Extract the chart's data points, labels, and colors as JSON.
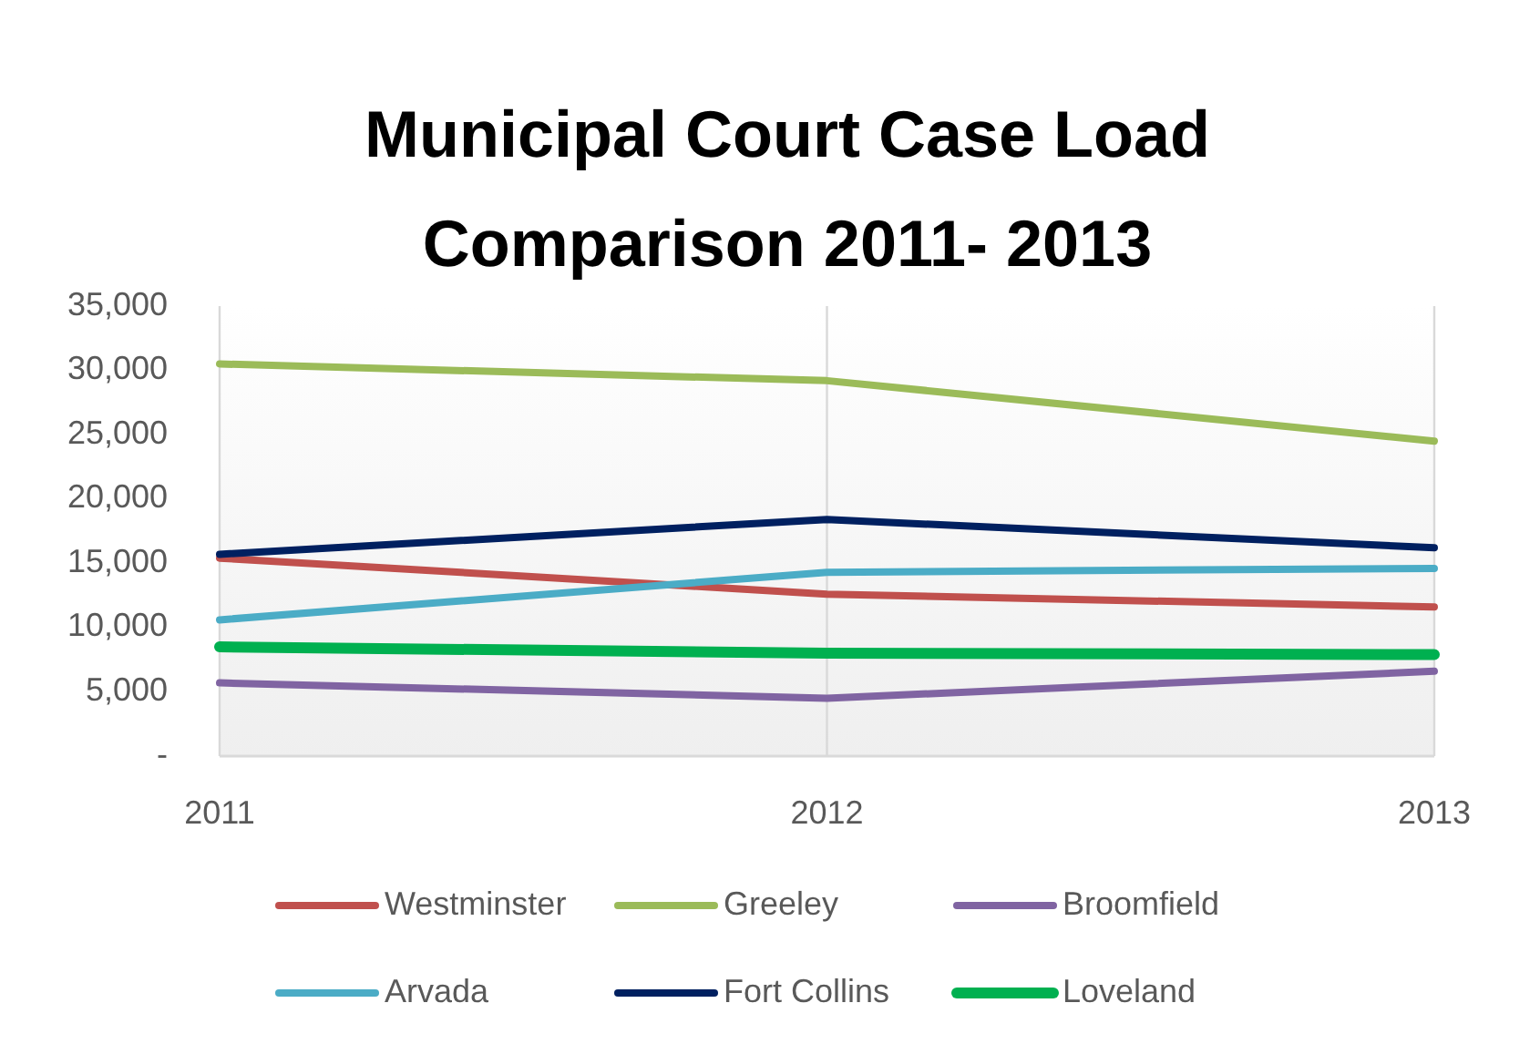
{
  "chart_data": {
    "type": "line",
    "title": "Municipal Court Case Load Comparison 2011- 2013",
    "categories": [
      "2011",
      "2012",
      "2013"
    ],
    "series": [
      {
        "name": "Westminster",
        "color": "#c0504d",
        "values": [
          15400,
          12600,
          11600
        ]
      },
      {
        "name": "Greeley",
        "color": "#9bbb59",
        "values": [
          30500,
          29200,
          24500
        ]
      },
      {
        "name": "Broomfield",
        "color": "#8064a2",
        "values": [
          5700,
          4500,
          6600
        ]
      },
      {
        "name": "Arvada",
        "color": "#4bacc6",
        "values": [
          10600,
          14300,
          14600
        ]
      },
      {
        "name": "Fort Collins",
        "color": "#002060",
        "values": [
          15700,
          18400,
          16200
        ]
      },
      {
        "name": "Loveland",
        "color": "#00b050",
        "values": [
          8500,
          8000,
          7900
        ]
      }
    ],
    "ylim": [
      0,
      35000
    ],
    "yticks": [
      {
        "value": 0,
        "label": "-"
      },
      {
        "value": 5000,
        "label": "5,000"
      },
      {
        "value": 10000,
        "label": "10,000"
      },
      {
        "value": 15000,
        "label": "15,000"
      },
      {
        "value": 20000,
        "label": "20,000"
      },
      {
        "value": 25000,
        "label": "25,000"
      },
      {
        "value": 30000,
        "label": "30,000"
      },
      {
        "value": 35000,
        "label": "35,000"
      }
    ],
    "grid": "x",
    "legend": "bottom"
  }
}
